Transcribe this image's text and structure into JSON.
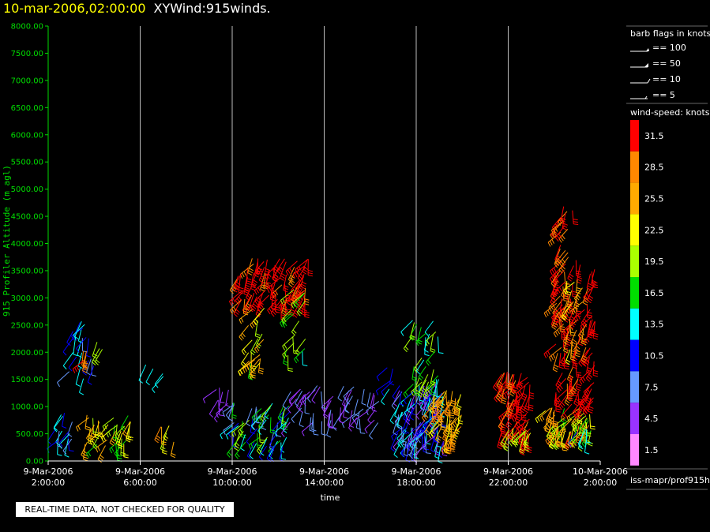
{
  "title": {
    "date": "10-mar-2006,02:00:00",
    "name": "XYWind:915winds."
  },
  "notice": "REAL-TIME DATA, NOT CHECKED FOR QUALITY",
  "source_path": "iss-mapr/prof915h",
  "colors": {
    "ytick": "#00dd00",
    "grid": "#bbbbbb",
    "background": "#000000"
  },
  "chart_data": {
    "type": "scatter",
    "title": "XYWind:915winds.",
    "xlabel": "time",
    "ylabel": "915 Profiler Altitude (m agl)",
    "ylim": [
      0,
      8000
    ],
    "yticks": [
      "0.00",
      "500.00",
      "1000.00",
      "1500.00",
      "2000.00",
      "2500.00",
      "3000.00",
      "3500.00",
      "4000.00",
      "4500.00",
      "5000.00",
      "5500.00",
      "6000.00",
      "6500.00",
      "7000.00",
      "7500.00",
      "8000.00"
    ],
    "xlim": [
      "2006-03-09T02:00",
      "2006-03-10T02:00"
    ],
    "xticks": [
      {
        "hours": 0,
        "date": "9-Mar-2006",
        "time": "2:00:00"
      },
      {
        "hours": 4,
        "date": "9-Mar-2006",
        "time": "6:00:00"
      },
      {
        "hours": 8,
        "date": "9-Mar-2006",
        "time": "10:00:00"
      },
      {
        "hours": 12,
        "date": "9-Mar-2006",
        "time": "14:00:00"
      },
      {
        "hours": 16,
        "date": "9-Mar-2006",
        "time": "18:00:00"
      },
      {
        "hours": 20,
        "date": "9-Mar-2006",
        "time": "22:00:00"
      },
      {
        "hours": 24,
        "date": "10-Mar-2006",
        "time": "2:00:00"
      }
    ],
    "grid": true,
    "legend_position": "right",
    "barb_legend": {
      "title": "barb flags in knots",
      "items": [
        "== 100",
        "== 50",
        "== 10",
        "== 5"
      ]
    },
    "colorbar": {
      "title": "wind-speed: knots",
      "levels": [
        {
          "label": "31.5",
          "color": "#ff0000"
        },
        {
          "label": "28.5",
          "color": "#ff8800"
        },
        {
          "label": "25.5",
          "color": "#ffaa00"
        },
        {
          "label": "22.5",
          "color": "#ffff00"
        },
        {
          "label": "19.5",
          "color": "#aaff00"
        },
        {
          "label": "16.5",
          "color": "#00dd00"
        },
        {
          "label": "13.5",
          "color": "#00ffff"
        },
        {
          "label": "10.5",
          "color": "#0000ff"
        },
        {
          "label": "7.5",
          "color": "#6699ff"
        },
        {
          "label": "4.5",
          "color": "#9933ff"
        },
        {
          "label": "1.5",
          "color": "#ff88ff"
        }
      ]
    },
    "clusters": [
      {
        "t0": 0.2,
        "t1": 1.2,
        "z0": 300,
        "z1": 900,
        "speed": [
          6,
          14
        ],
        "n": 14
      },
      {
        "t0": 0.8,
        "t1": 2.0,
        "z0": 1500,
        "z1": 2600,
        "speed": [
          8,
          16
        ],
        "n": 22
      },
      {
        "t0": 1.4,
        "t1": 1.9,
        "z0": 1800,
        "z1": 2100,
        "speed": [
          27,
          31
        ],
        "n": 4
      },
      {
        "t0": 2.0,
        "t1": 2.4,
        "z0": 2000,
        "z1": 2200,
        "speed": [
          18,
          20
        ],
        "n": 3
      },
      {
        "t0": 1.6,
        "t1": 3.6,
        "z0": 250,
        "z1": 850,
        "speed": [
          16,
          27
        ],
        "n": 36
      },
      {
        "t0": 4.2,
        "t1": 5.2,
        "z0": 1500,
        "z1": 1800,
        "speed": [
          12,
          14
        ],
        "n": 4
      },
      {
        "t0": 4.5,
        "t1": 5.5,
        "z0": 300,
        "z1": 700,
        "speed": [
          18,
          29
        ],
        "n": 6
      },
      {
        "t0": 7.2,
        "t1": 8.0,
        "z0": 900,
        "z1": 1400,
        "speed": [
          3,
          6
        ],
        "n": 8
      },
      {
        "t0": 8.0,
        "t1": 10.5,
        "z0": 250,
        "z1": 1100,
        "speed": [
          6,
          20
        ],
        "n": 60
      },
      {
        "t0": 8.2,
        "t1": 11.4,
        "z0": 2900,
        "z1": 3750,
        "speed": [
          29,
          33
        ],
        "n": 80
      },
      {
        "t0": 8.7,
        "t1": 9.5,
        "z0": 1800,
        "z1": 2900,
        "speed": [
          17,
          26
        ],
        "n": 20
      },
      {
        "t0": 10.3,
        "t1": 11.2,
        "z0": 1900,
        "z1": 3300,
        "speed": [
          12,
          21
        ],
        "n": 16
      },
      {
        "t0": 10.5,
        "t1": 14.4,
        "z0": 700,
        "z1": 1400,
        "speed": [
          3,
          9
        ],
        "n": 55
      },
      {
        "t0": 14.5,
        "t1": 15.0,
        "z0": 1300,
        "z1": 1800,
        "speed": [
          10,
          14
        ],
        "n": 5
      },
      {
        "t0": 15.2,
        "t1": 17.2,
        "z0": 250,
        "z1": 1450,
        "speed": [
          4,
          15
        ],
        "n": 110
      },
      {
        "t0": 15.8,
        "t1": 17.0,
        "z0": 1400,
        "z1": 2600,
        "speed": [
          12,
          20
        ],
        "n": 30
      },
      {
        "t0": 16.6,
        "t1": 18.0,
        "z0": 400,
        "z1": 1300,
        "speed": [
          22,
          30
        ],
        "n": 50
      },
      {
        "t0": 19.7,
        "t1": 21.0,
        "z0": 400,
        "z1": 1650,
        "speed": [
          29,
          33
        ],
        "n": 60
      },
      {
        "t0": 19.9,
        "t1": 21.0,
        "z0": 400,
        "z1": 650,
        "speed": [
          19,
          24
        ],
        "n": 10
      },
      {
        "t0": 21.5,
        "t1": 23.6,
        "z0": 450,
        "z1": 1000,
        "speed": [
          17,
          31
        ],
        "n": 60
      },
      {
        "t0": 22.0,
        "t1": 23.8,
        "z0": 1000,
        "z1": 3700,
        "speed": [
          29,
          33
        ],
        "n": 110
      },
      {
        "t0": 22.2,
        "t1": 22.8,
        "z0": 3500,
        "z1": 4700,
        "speed": [
          29,
          33
        ],
        "n": 20
      },
      {
        "t0": 22.5,
        "t1": 23.3,
        "z0": 2000,
        "z1": 3400,
        "speed": [
          22,
          27
        ],
        "n": 14
      },
      {
        "t0": 23.0,
        "t1": 23.6,
        "z0": 400,
        "z1": 600,
        "speed": [
          10,
          15
        ],
        "n": 5
      }
    ]
  }
}
